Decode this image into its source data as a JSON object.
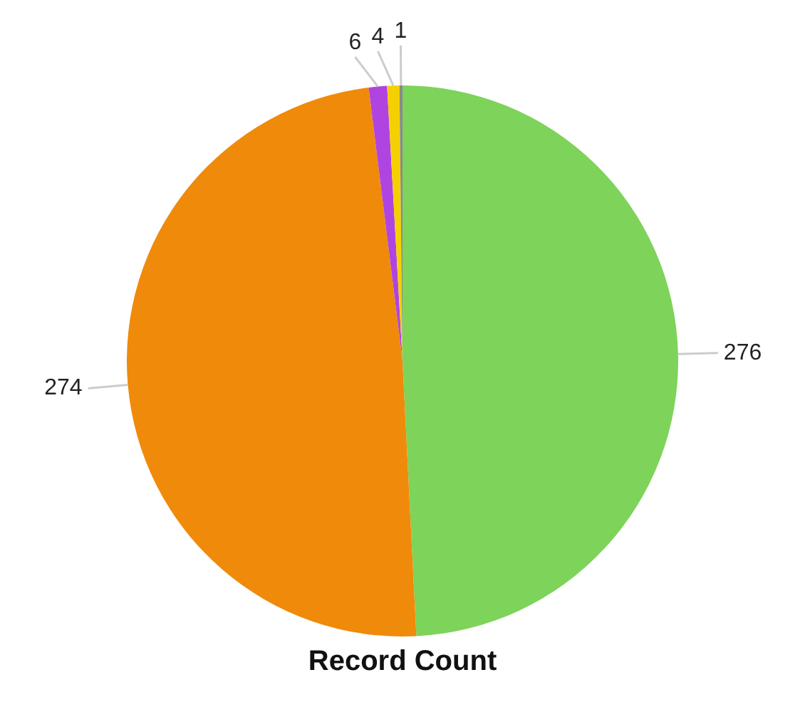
{
  "chart_data": {
    "type": "pie",
    "title": "Record Count",
    "categories": [
      null,
      null,
      null,
      null,
      null
    ],
    "values": [
      276,
      274,
      6,
      4,
      1
    ],
    "colors": [
      "#7ed35a",
      "#f08a0a",
      "#b044e0",
      "#f5d000",
      "#8a8a8a"
    ],
    "data_labels": true,
    "legend": false
  }
}
